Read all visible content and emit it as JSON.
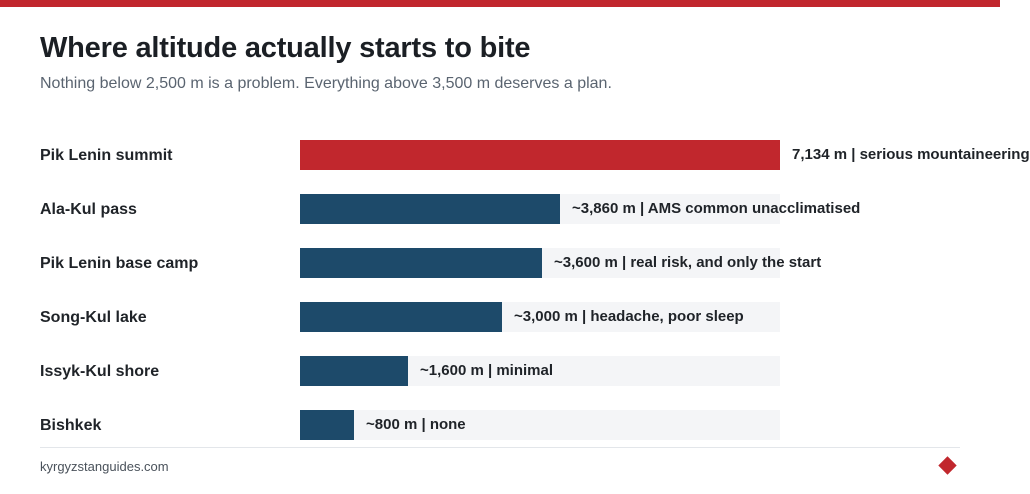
{
  "colors": {
    "accent": "#c1272d",
    "bar_default": "#1d4a6a",
    "track": "#f4f5f7"
  },
  "footer": {
    "source": "kyrgyzstanguides.com",
    "mark_icon": "diamond-icon"
  },
  "chart_data": {
    "type": "bar",
    "orientation": "horizontal",
    "title": "Where altitude actually starts to bite",
    "subtitle": "Nothing below 2,500 m is a problem. Everything above 3,500 m deserves a plan.",
    "xlim": [
      0,
      7134
    ],
    "grid": false,
    "categories": [
      "Pik Lenin summit",
      "Ala-Kul pass",
      "Pik Lenin base camp",
      "Song-Kul lake",
      "Issyk-Kul shore",
      "Bishkek"
    ],
    "values": [
      7134,
      3860,
      3600,
      3000,
      1600,
      800
    ],
    "value_labels": [
      "7,134 m | serious mountaineering",
      "~3,860 m | AMS common unacclimatised",
      "~3,600 m | real risk, and only the start",
      "~3,000 m | headache, poor sleep",
      "~1,600 m | minimal",
      "~800 m | none"
    ],
    "highlight": [
      true,
      false,
      false,
      false,
      false,
      false
    ]
  }
}
